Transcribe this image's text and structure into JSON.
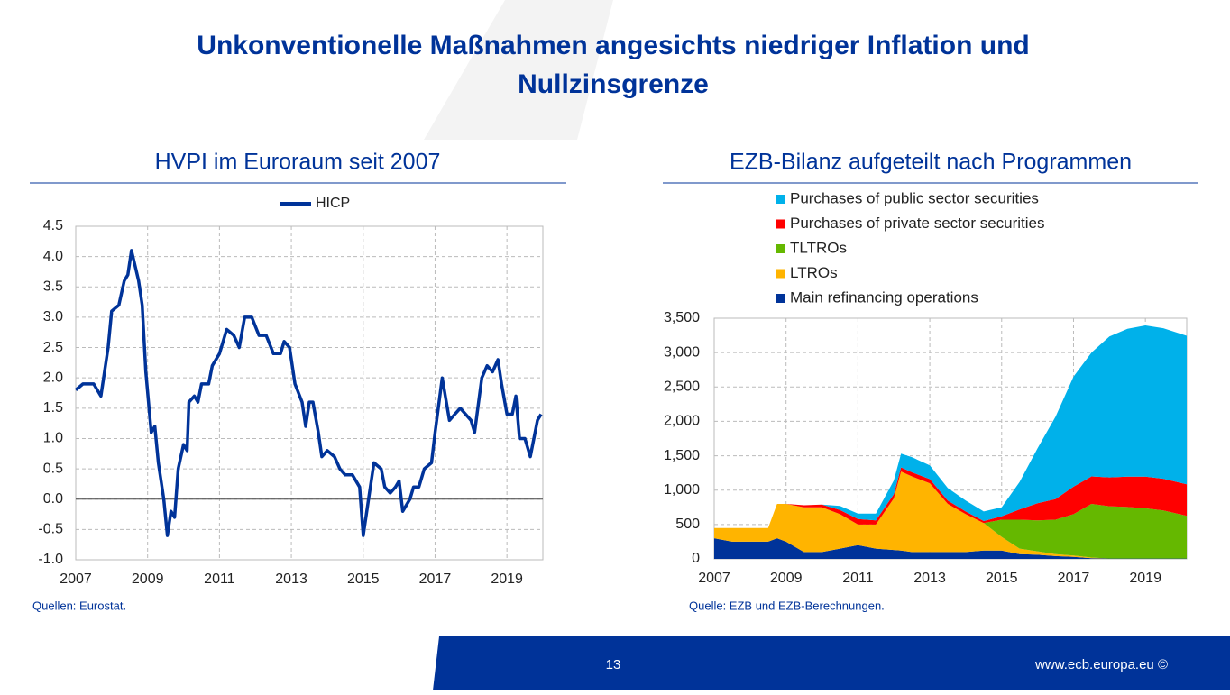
{
  "slide": {
    "title": [
      "Unkonventionelle Maßnahmen angesichts niedriger Inflation und",
      "Nullzinsgrenze"
    ],
    "page_number": "13",
    "footer": "www.ecb.europa.eu ©"
  },
  "chart_data": [
    {
      "type": "line",
      "title": "HVPI im Euroraum seit 2007",
      "source": "Quellen: Eurostat.",
      "x": [
        2007.0,
        2007.2,
        2007.5,
        2007.7,
        2007.9,
        2008.0,
        2008.2,
        2008.35,
        2008.45,
        2008.55,
        2008.75,
        2008.85,
        2008.95,
        2009.1,
        2009.2,
        2009.3,
        2009.45,
        2009.55,
        2009.65,
        2009.75,
        2009.85,
        2010.0,
        2010.1,
        2010.15,
        2010.3,
        2010.4,
        2010.5,
        2010.7,
        2010.8,
        2011.0,
        2011.2,
        2011.4,
        2011.55,
        2011.7,
        2011.9,
        2012.1,
        2012.3,
        2012.5,
        2012.7,
        2012.8,
        2012.95,
        2013.1,
        2013.3,
        2013.4,
        2013.5,
        2013.6,
        2013.75,
        2013.85,
        2014.0,
        2014.2,
        2014.35,
        2014.5,
        2014.7,
        2014.9,
        2015.0,
        2015.15,
        2015.3,
        2015.5,
        2015.6,
        2015.75,
        2015.9,
        2016.0,
        2016.1,
        2016.3,
        2016.4,
        2016.55,
        2016.7,
        2016.9,
        2017.0,
        2017.2,
        2017.4,
        2017.55,
        2017.7,
        2017.85,
        2018.0,
        2018.1,
        2018.3,
        2018.45,
        2018.6,
        2018.75,
        2018.85,
        2019.0,
        2019.15,
        2019.25,
        2019.35,
        2019.5,
        2019.65,
        2019.85,
        2019.95
      ],
      "series": [
        {
          "name": "HICP",
          "color": "#003399",
          "values": [
            1.8,
            1.9,
            1.9,
            1.7,
            2.5,
            3.1,
            3.2,
            3.6,
            3.7,
            4.1,
            3.6,
            3.2,
            2.1,
            1.1,
            1.2,
            0.6,
            0.0,
            -0.6,
            -0.2,
            -0.3,
            0.5,
            0.9,
            0.8,
            1.6,
            1.7,
            1.6,
            1.9,
            1.9,
            2.2,
            2.4,
            2.8,
            2.7,
            2.5,
            3.0,
            3.0,
            2.7,
            2.7,
            2.4,
            2.4,
            2.6,
            2.5,
            1.9,
            1.6,
            1.2,
            1.6,
            1.6,
            1.1,
            0.7,
            0.8,
            0.7,
            0.5,
            0.4,
            0.4,
            0.2,
            -0.6,
            0.0,
            0.6,
            0.5,
            0.2,
            0.1,
            0.2,
            0.3,
            -0.2,
            0.0,
            0.2,
            0.2,
            0.5,
            0.6,
            1.1,
            2.0,
            1.3,
            1.4,
            1.5,
            1.4,
            1.3,
            1.1,
            2.0,
            2.2,
            2.1,
            2.3,
            1.9,
            1.4,
            1.4,
            1.7,
            1.0,
            1.0,
            0.7,
            1.3,
            1.4
          ]
        }
      ],
      "xlim": [
        2007,
        2020
      ],
      "xticks": [
        2007,
        2009,
        2011,
        2013,
        2015,
        2017,
        2019
      ],
      "ylim": [
        -1,
        4.5
      ],
      "yticks": [
        {
          "value": -1,
          "label": "-1.0"
        },
        -0.5,
        {
          "value": 0,
          "label": "0.0"
        },
        0.5,
        {
          "value": 1,
          "label": "1.0"
        },
        1.5,
        {
          "value": 2,
          "label": "2.0"
        },
        2.5,
        {
          "value": 3,
          "label": "3.0"
        },
        3.5,
        {
          "value": 4,
          "label": "4.0"
        },
        4.5
      ],
      "grid": true,
      "legend": "top"
    },
    {
      "type": "stacked_area",
      "title": "EZB-Bilanz aufgeteilt nach Programmen",
      "source": "Quelle: EZB und EZB-Berechnungen.",
      "x": [
        2007,
        2007.5,
        2008,
        2008.5,
        2008.75,
        2009,
        2009.5,
        2010,
        2010.5,
        2011,
        2011.5,
        2012,
        2012.2,
        2012.5,
        2013,
        2013.5,
        2014,
        2014.5,
        2015,
        2015.5,
        2016,
        2016.5,
        2017,
        2017.5,
        2018,
        2018.5,
        2019,
        2019.5,
        2020.15
      ],
      "series": [
        {
          "name": "Main refinancing operations",
          "color": "#003399",
          "values": [
            300,
            250,
            250,
            250,
            300,
            250,
            100,
            100,
            150,
            200,
            150,
            130,
            120,
            100,
            100,
            100,
            100,
            120,
            120,
            70,
            60,
            40,
            30,
            10,
            5,
            5,
            5,
            5,
            5
          ]
        },
        {
          "name": "LTROs",
          "color": "#ffb400",
          "values": [
            150,
            200,
            200,
            200,
            500,
            550,
            650,
            650,
            500,
            300,
            350,
            750,
            1150,
            1100,
            1000,
            700,
            550,
            400,
            200,
            80,
            50,
            30,
            20,
            10,
            0,
            0,
            0,
            0,
            0
          ]
        },
        {
          "name": "TLTROs",
          "color": "#65b800",
          "values": [
            0,
            0,
            0,
            0,
            0,
            0,
            0,
            0,
            0,
            0,
            0,
            0,
            0,
            0,
            0,
            0,
            0,
            0,
            250,
            420,
            450,
            500,
            600,
            780,
            760,
            750,
            730,
            700,
            620
          ]
        },
        {
          "name": "Purchases of private sector securities",
          "color": "#ff0000",
          "values": [
            0,
            0,
            0,
            0,
            0,
            0,
            30,
            40,
            60,
            80,
            60,
            60,
            60,
            60,
            60,
            50,
            40,
            30,
            50,
            150,
            250,
            300,
            400,
            400,
            420,
            440,
            460,
            460,
            460
          ]
        },
        {
          "name": "Purchases of public sector securities",
          "color": "#00b1ea",
          "values": [
            0,
            0,
            0,
            0,
            0,
            0,
            0,
            0,
            60,
            80,
            100,
            200,
            200,
            220,
            200,
            180,
            160,
            140,
            130,
            400,
            800,
            1200,
            1600,
            1800,
            2050,
            2150,
            2200,
            2190,
            2160
          ]
        }
      ],
      "xlim": [
        2007,
        2020.15
      ],
      "xticks": [
        2007,
        2009,
        2011,
        2013,
        2015,
        2017,
        2019
      ],
      "ylim": [
        0,
        3500
      ],
      "yticks": [
        0,
        500,
        {
          "value": 1000,
          "label": "1,000"
        },
        {
          "value": 1500,
          "label": "1,500"
        },
        {
          "value": 2000,
          "label": "2,000"
        },
        {
          "value": 2500,
          "label": "2,500"
        },
        {
          "value": 3000,
          "label": "3,000"
        },
        {
          "value": 3500,
          "label": "3,500"
        }
      ],
      "grid": true,
      "legend": "top-left"
    }
  ]
}
